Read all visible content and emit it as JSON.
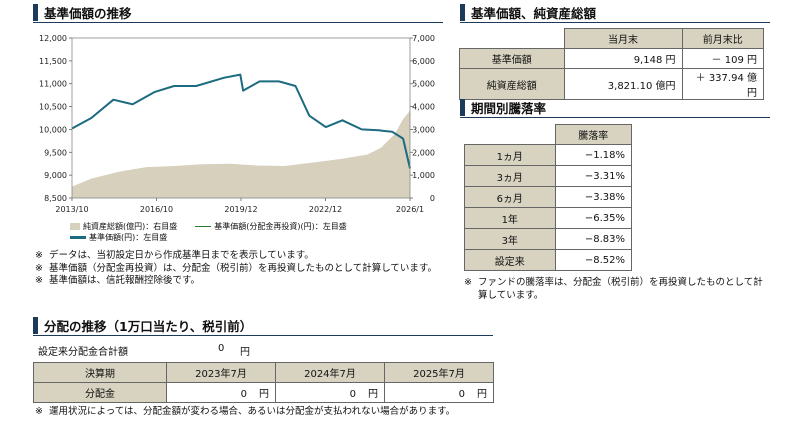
{
  "nav_section": {
    "title": "基準価額の推移",
    "chart_data": {
      "type": "line",
      "x_ticks": [
        "2013/10",
        "2016/10",
        "2019/12",
        "2022/12",
        "2026/1"
      ],
      "y_left_ticks": [
        "12,000",
        "11,500",
        "11,000",
        "10,500",
        "10,000",
        "9,500",
        "9,000",
        "8,500"
      ],
      "y_right_ticks": [
        "7,000",
        "6,000",
        "5,000",
        "4,000",
        "3,000",
        "2,000",
        "1,000",
        "0"
      ],
      "y_left_range": [
        8500,
        12000
      ],
      "y_right_range": [
        0,
        7000
      ],
      "series": [
        {
          "name": "純資産総額(億円)：右目盛",
          "type": "area",
          "axis": "right",
          "color": "#d6d0bd",
          "x": [
            2013.8,
            2014.5,
            2015.5,
            2016.0,
            2016.5,
            2017.5,
            2018.5,
            2019.5,
            2020.5,
            2021.5,
            2022.5,
            2023.5,
            2024.5,
            2025.0,
            2025.5,
            2025.8,
            2026.05
          ],
          "values": [
            500,
            850,
            1150,
            1250,
            1350,
            1400,
            1480,
            1500,
            1420,
            1400,
            1550,
            1700,
            1900,
            2200,
            2800,
            3450,
            3820
          ]
        },
        {
          "name": "基準価額(分配金再投資)(円)：左目盛",
          "type": "line",
          "axis": "left",
          "color": "#2f7a2f",
          "x": [
            2013.8,
            2014.5,
            2015.3,
            2016.0,
            2016.8,
            2017.5,
            2018.3,
            2019.3,
            2019.9,
            2020.0,
            2020.6,
            2021.3,
            2021.9,
            2022.4,
            2023.0,
            2023.6,
            2024.3,
            2024.9,
            2025.4,
            2025.8,
            2026.05
          ],
          "values": [
            10020,
            10250,
            10650,
            10550,
            10820,
            10950,
            10950,
            11130,
            11200,
            10850,
            11050,
            11050,
            10950,
            10300,
            10050,
            10200,
            10000,
            9980,
            9950,
            9800,
            9148
          ]
        },
        {
          "name": "基準価額(円)：左目盛",
          "type": "line",
          "axis": "left",
          "color": "#1c6b80",
          "x": [
            2013.8,
            2014.5,
            2015.3,
            2016.0,
            2016.8,
            2017.5,
            2018.3,
            2019.3,
            2019.9,
            2020.0,
            2020.6,
            2021.3,
            2021.9,
            2022.4,
            2023.0,
            2023.6,
            2024.3,
            2024.9,
            2025.4,
            2025.8,
            2026.05
          ],
          "values": [
            10020,
            10250,
            10650,
            10550,
            10820,
            10950,
            10950,
            11130,
            11200,
            10850,
            11050,
            11050,
            10950,
            10300,
            10050,
            10200,
            10000,
            9980,
            9950,
            9800,
            9148
          ]
        }
      ]
    },
    "notes": [
      "データは、当初設定日から作成基準日までを表示しています。",
      "基準価額（分配金再投資）は、分配金（税引前）を再投資したものとして計算しています。",
      "基準価額は、信託報酬控除後です。"
    ]
  },
  "summary": {
    "title": "基準価額、純資産総額",
    "headers": [
      "当月末",
      "前月末比"
    ],
    "rows": [
      {
        "label": "基準価額",
        "value": "9,148 円",
        "change": "－ 109 円"
      },
      {
        "label": "純資産総額",
        "value": "3,821.10 億円",
        "change": "＋ 337.94 億円"
      }
    ]
  },
  "performance": {
    "title": "期間別騰落率",
    "header": "騰落率",
    "rows": [
      {
        "label": "1ヵ月",
        "value": "−1.18%"
      },
      {
        "label": "3ヵ月",
        "value": "−3.31%"
      },
      {
        "label": "6ヵ月",
        "value": "−3.38%"
      },
      {
        "label": "1年",
        "value": "−6.35%"
      },
      {
        "label": "3年",
        "value": "−8.83%"
      },
      {
        "label": "設定来",
        "value": "−8.52%"
      }
    ],
    "note": "ファンドの騰落率は、分配金（税引前）を再投資したものとして計算しています。"
  },
  "distribution": {
    "title": "分配の推移（1万口当たり、税引前）",
    "total_label": "設定来分配金合計額",
    "total_value": "0",
    "total_unit": "円",
    "header_label": "決算期",
    "periods": [
      "2023年7月",
      "2024年7月",
      "2025年7月"
    ],
    "row_label": "分配金",
    "values": [
      "0",
      "0",
      "0"
    ],
    "unit": "円",
    "note": "運用状況によっては、分配金額が変わる場合、あるいは分配金が支払われない場合があります。"
  },
  "note_mark": "※",
  "colors": {
    "navy": "#1c3b5a",
    "header_bg": "#d8d3c0",
    "nav_line": "#1c6b80",
    "area": "#d6d0bd",
    "reinvest_line": "#2f7a2f"
  }
}
